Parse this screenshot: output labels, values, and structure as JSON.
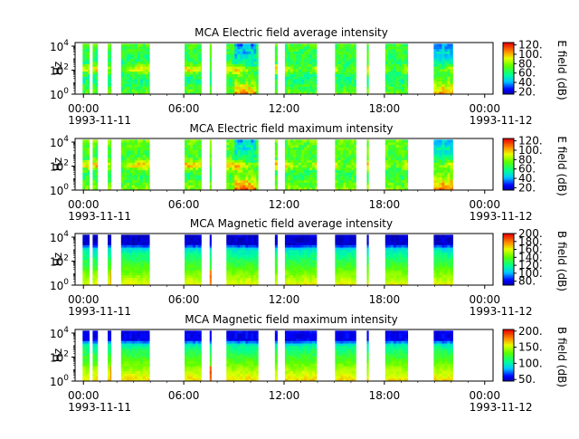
{
  "chart_data": [
    {
      "type": "heatmap",
      "title": "MCA  Electric field average intensity",
      "ylabel": "Hz",
      "colorbar_label": "E field (dB)",
      "colorbar_range": [
        15,
        125
      ],
      "colorbar_ticks": [
        "20.",
        "40.",
        "60.",
        "80.",
        "100.",
        "120."
      ],
      "colorbar_tick_values": [
        20,
        40,
        60,
        80,
        100,
        120
      ],
      "y_ticks": [
        {
          "base": "10",
          "exp": "0"
        },
        {
          "base": "10",
          "exp": "2"
        },
        {
          "base": "10",
          "exp": "4"
        }
      ],
      "ylim_exp": [
        0,
        4.3
      ],
      "x_ticks": [
        "00:00",
        "06:00",
        "12:00",
        "18:00",
        "00:00"
      ],
      "x_range_hours": [
        -0.5,
        24.5
      ],
      "date_start": "1993-11-11",
      "date_end": "1993-11-12",
      "style": "electric"
    },
    {
      "type": "heatmap",
      "title": "MCA  Electric field maximum intensity",
      "ylabel": "Hz",
      "colorbar_label": "E field (dB)",
      "colorbar_range": [
        15,
        125
      ],
      "colorbar_ticks": [
        "20.",
        "40.",
        "60.",
        "80.",
        "100.",
        "120."
      ],
      "colorbar_tick_values": [
        20,
        40,
        60,
        80,
        100,
        120
      ],
      "y_ticks": [
        {
          "base": "10",
          "exp": "0"
        },
        {
          "base": "10",
          "exp": "2"
        },
        {
          "base": "10",
          "exp": "4"
        }
      ],
      "ylim_exp": [
        0,
        4.3
      ],
      "x_ticks": [
        "00:00",
        "06:00",
        "12:00",
        "18:00",
        "00:00"
      ],
      "x_range_hours": [
        -0.5,
        24.5
      ],
      "date_start": "1993-11-11",
      "date_end": "1993-11-12",
      "style": "electric"
    },
    {
      "type": "heatmap",
      "title": "MCA  Magnetic field average intensity",
      "ylabel": "Hz",
      "colorbar_label": "B field (dB)",
      "colorbar_range": [
        70,
        200
      ],
      "colorbar_ticks": [
        "80.",
        "100.",
        "120.",
        "140.",
        "160.",
        "180.",
        "200."
      ],
      "colorbar_tick_values": [
        80,
        100,
        120,
        140,
        160,
        180,
        200
      ],
      "y_ticks": [
        {
          "base": "10",
          "exp": "0"
        },
        {
          "base": "10",
          "exp": "2"
        },
        {
          "base": "10",
          "exp": "4"
        }
      ],
      "ylim_exp": [
        0,
        4.3
      ],
      "x_ticks": [
        "00:00",
        "06:00",
        "12:00",
        "18:00",
        "00:00"
      ],
      "x_range_hours": [
        -0.5,
        24.5
      ],
      "date_start": "1993-11-11",
      "date_end": "1993-11-12",
      "style": "magnetic"
    },
    {
      "type": "heatmap",
      "title": "MCA  Magnetic field maximum intensity",
      "ylabel": "Hz",
      "colorbar_label": "B field (dB)",
      "colorbar_range": [
        45,
        205
      ],
      "colorbar_ticks": [
        "50.",
        "100.",
        "150.",
        "200."
      ],
      "colorbar_tick_values": [
        50,
        100,
        150,
        200
      ],
      "y_ticks": [
        {
          "base": "10",
          "exp": "0"
        },
        {
          "base": "10",
          "exp": "2"
        },
        {
          "base": "10",
          "exp": "4"
        }
      ],
      "ylim_exp": [
        0,
        4.3
      ],
      "x_ticks": [
        "00:00",
        "06:00",
        "12:00",
        "18:00",
        "00:00"
      ],
      "x_range_hours": [
        -0.5,
        24.5
      ],
      "date_start": "1993-11-11",
      "date_end": "1993-11-12",
      "style": "magnetic"
    }
  ],
  "data_segments_hours": [
    [
      -0.05,
      0.35
    ],
    [
      0.55,
      0.85
    ],
    [
      1.45,
      1.65
    ],
    [
      2.25,
      3.95
    ],
    [
      6.05,
      7.05
    ],
    [
      7.55,
      7.65
    ],
    [
      8.55,
      10.45
    ],
    [
      11.45,
      11.6
    ],
    [
      12.05,
      13.95
    ],
    [
      15.05,
      16.3
    ],
    [
      16.95,
      17.05
    ],
    [
      18.05,
      19.4
    ],
    [
      20.95,
      22.1
    ]
  ]
}
